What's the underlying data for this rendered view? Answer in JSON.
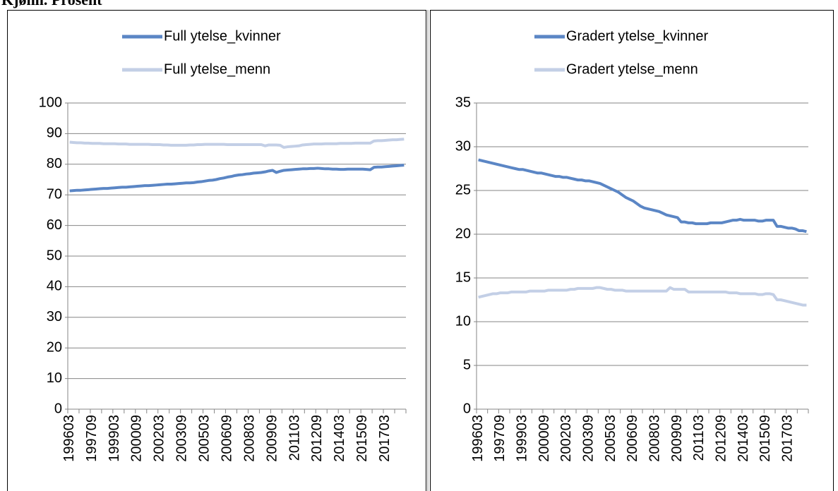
{
  "title": "Kjønn. Prosent",
  "chart_data": [
    {
      "type": "line",
      "categories": [
        "199603",
        null,
        null,
        null,
        null,
        null,
        "199709",
        null,
        null,
        null,
        null,
        null,
        "199903",
        null,
        null,
        null,
        null,
        null,
        "200009",
        null,
        null,
        null,
        null,
        null,
        "200203",
        null,
        null,
        null,
        null,
        null,
        "200309",
        null,
        null,
        null,
        null,
        null,
        "200503",
        null,
        null,
        null,
        null,
        null,
        "200609",
        null,
        null,
        null,
        null,
        null,
        "200803",
        null,
        null,
        null,
        null,
        null,
        "200909",
        null,
        null,
        null,
        null,
        null,
        "201103",
        null,
        null,
        null,
        null,
        null,
        "201209",
        null,
        null,
        null,
        null,
        null,
        "201403",
        null,
        null,
        null,
        null,
        null,
        "201509",
        null,
        null,
        null,
        null,
        null,
        "201703",
        null,
        null,
        null,
        null,
        null
      ],
      "series": [
        {
          "name": "Full ytelse_kvinner",
          "color": "#5b86c5",
          "values": [
            71.3,
            71.4,
            71.5,
            71.5,
            71.6,
            71.7,
            71.8,
            71.9,
            72.0,
            72.1,
            72.1,
            72.2,
            72.3,
            72.4,
            72.5,
            72.5,
            72.6,
            72.7,
            72.8,
            72.9,
            73.0,
            73.0,
            73.1,
            73.2,
            73.3,
            73.4,
            73.5,
            73.5,
            73.6,
            73.7,
            73.8,
            73.9,
            73.9,
            74.0,
            74.2,
            74.3,
            74.5,
            74.7,
            74.8,
            75.0,
            75.3,
            75.5,
            75.8,
            76.0,
            76.3,
            76.5,
            76.6,
            76.8,
            76.9,
            77.1,
            77.2,
            77.3,
            77.5,
            77.8,
            78.0,
            77.3,
            77.7,
            78.0,
            78.1,
            78.2,
            78.3,
            78.4,
            78.5,
            78.5,
            78.6,
            78.6,
            78.7,
            78.6,
            78.5,
            78.5,
            78.4,
            78.4,
            78.3,
            78.3,
            78.4,
            78.4,
            78.4,
            78.4,
            78.4,
            78.3,
            78.2,
            79.0,
            79.1,
            79.1,
            79.2,
            79.3,
            79.4,
            79.5,
            79.6,
            79.7
          ]
        },
        {
          "name": "Full ytelse_menn",
          "color": "#c3cfe6",
          "values": [
            87.2,
            87.1,
            87.0,
            87.0,
            86.9,
            86.9,
            86.8,
            86.8,
            86.8,
            86.7,
            86.7,
            86.7,
            86.7,
            86.6,
            86.6,
            86.6,
            86.5,
            86.5,
            86.5,
            86.5,
            86.5,
            86.5,
            86.4,
            86.4,
            86.4,
            86.3,
            86.3,
            86.2,
            86.2,
            86.2,
            86.2,
            86.2,
            86.3,
            86.3,
            86.4,
            86.4,
            86.5,
            86.5,
            86.5,
            86.5,
            86.5,
            86.5,
            86.4,
            86.4,
            86.4,
            86.4,
            86.4,
            86.4,
            86.4,
            86.4,
            86.4,
            86.4,
            86.0,
            86.3,
            86.3,
            86.3,
            86.2,
            85.5,
            85.7,
            85.8,
            85.9,
            86.0,
            86.3,
            86.4,
            86.5,
            86.6,
            86.6,
            86.6,
            86.7,
            86.7,
            86.7,
            86.7,
            86.8,
            86.8,
            86.8,
            86.8,
            86.9,
            86.9,
            86.9,
            86.9,
            86.9,
            87.6,
            87.7,
            87.7,
            87.8,
            87.9,
            88.0,
            88.0,
            88.1,
            88.2
          ]
        }
      ],
      "ylim": [
        0,
        100
      ],
      "yticks": [
        0,
        10,
        20,
        30,
        40,
        50,
        60,
        70,
        80,
        90,
        100
      ],
      "grid": true,
      "legend": "top"
    },
    {
      "type": "line",
      "categories": [
        "199603",
        null,
        null,
        null,
        null,
        null,
        "199709",
        null,
        null,
        null,
        null,
        null,
        "199903",
        null,
        null,
        null,
        null,
        null,
        "200009",
        null,
        null,
        null,
        null,
        null,
        "200203",
        null,
        null,
        null,
        null,
        null,
        "200309",
        null,
        null,
        null,
        null,
        null,
        "200503",
        null,
        null,
        null,
        null,
        null,
        "200609",
        null,
        null,
        null,
        null,
        null,
        "200803",
        null,
        null,
        null,
        null,
        null,
        "200909",
        null,
        null,
        null,
        null,
        null,
        "201103",
        null,
        null,
        null,
        null,
        null,
        "201209",
        null,
        null,
        null,
        null,
        null,
        "201403",
        null,
        null,
        null,
        null,
        null,
        "201509",
        null,
        null,
        null,
        null,
        null,
        "201703",
        null,
        null,
        null,
        null,
        null
      ],
      "series": [
        {
          "name": "Gradert ytelse_kvinner",
          "color": "#5b86c5",
          "values": [
            28.5,
            28.4,
            28.3,
            28.2,
            28.1,
            28.0,
            27.9,
            27.8,
            27.7,
            27.6,
            27.5,
            27.4,
            27.4,
            27.3,
            27.2,
            27.1,
            27.0,
            27.0,
            26.9,
            26.8,
            26.7,
            26.6,
            26.6,
            26.5,
            26.5,
            26.4,
            26.3,
            26.2,
            26.2,
            26.1,
            26.1,
            26.0,
            25.9,
            25.8,
            25.6,
            25.4,
            25.2,
            25.0,
            24.8,
            24.5,
            24.2,
            24.0,
            23.8,
            23.5,
            23.2,
            23.0,
            22.9,
            22.8,
            22.7,
            22.6,
            22.4,
            22.2,
            22.1,
            22.0,
            21.9,
            21.4,
            21.4,
            21.3,
            21.3,
            21.2,
            21.2,
            21.2,
            21.2,
            21.3,
            21.3,
            21.3,
            21.3,
            21.4,
            21.5,
            21.6,
            21.6,
            21.7,
            21.6,
            21.6,
            21.6,
            21.6,
            21.5,
            21.5,
            21.6,
            21.6,
            21.6,
            20.9,
            20.9,
            20.8,
            20.7,
            20.7,
            20.6,
            20.4,
            20.4,
            20.3
          ]
        },
        {
          "name": "Gradert ytelse_menn",
          "color": "#c3cfe6",
          "values": [
            12.8,
            12.9,
            13.0,
            13.1,
            13.2,
            13.2,
            13.3,
            13.3,
            13.3,
            13.4,
            13.4,
            13.4,
            13.4,
            13.4,
            13.5,
            13.5,
            13.5,
            13.5,
            13.5,
            13.6,
            13.6,
            13.6,
            13.6,
            13.6,
            13.6,
            13.7,
            13.7,
            13.8,
            13.8,
            13.8,
            13.8,
            13.8,
            13.9,
            13.9,
            13.8,
            13.7,
            13.7,
            13.6,
            13.6,
            13.6,
            13.5,
            13.5,
            13.5,
            13.5,
            13.5,
            13.5,
            13.5,
            13.5,
            13.5,
            13.5,
            13.5,
            13.5,
            13.9,
            13.7,
            13.7,
            13.7,
            13.7,
            13.4,
            13.4,
            13.4,
            13.4,
            13.4,
            13.4,
            13.4,
            13.4,
            13.4,
            13.4,
            13.4,
            13.3,
            13.3,
            13.3,
            13.2,
            13.2,
            13.2,
            13.2,
            13.2,
            13.1,
            13.1,
            13.2,
            13.2,
            13.1,
            12.5,
            12.5,
            12.4,
            12.3,
            12.2,
            12.1,
            12.0,
            11.9,
            11.9
          ]
        }
      ],
      "ylim": [
        0,
        35
      ],
      "yticks": [
        0,
        5,
        10,
        15,
        20,
        25,
        30,
        35
      ],
      "grid": true,
      "legend": "top"
    }
  ]
}
